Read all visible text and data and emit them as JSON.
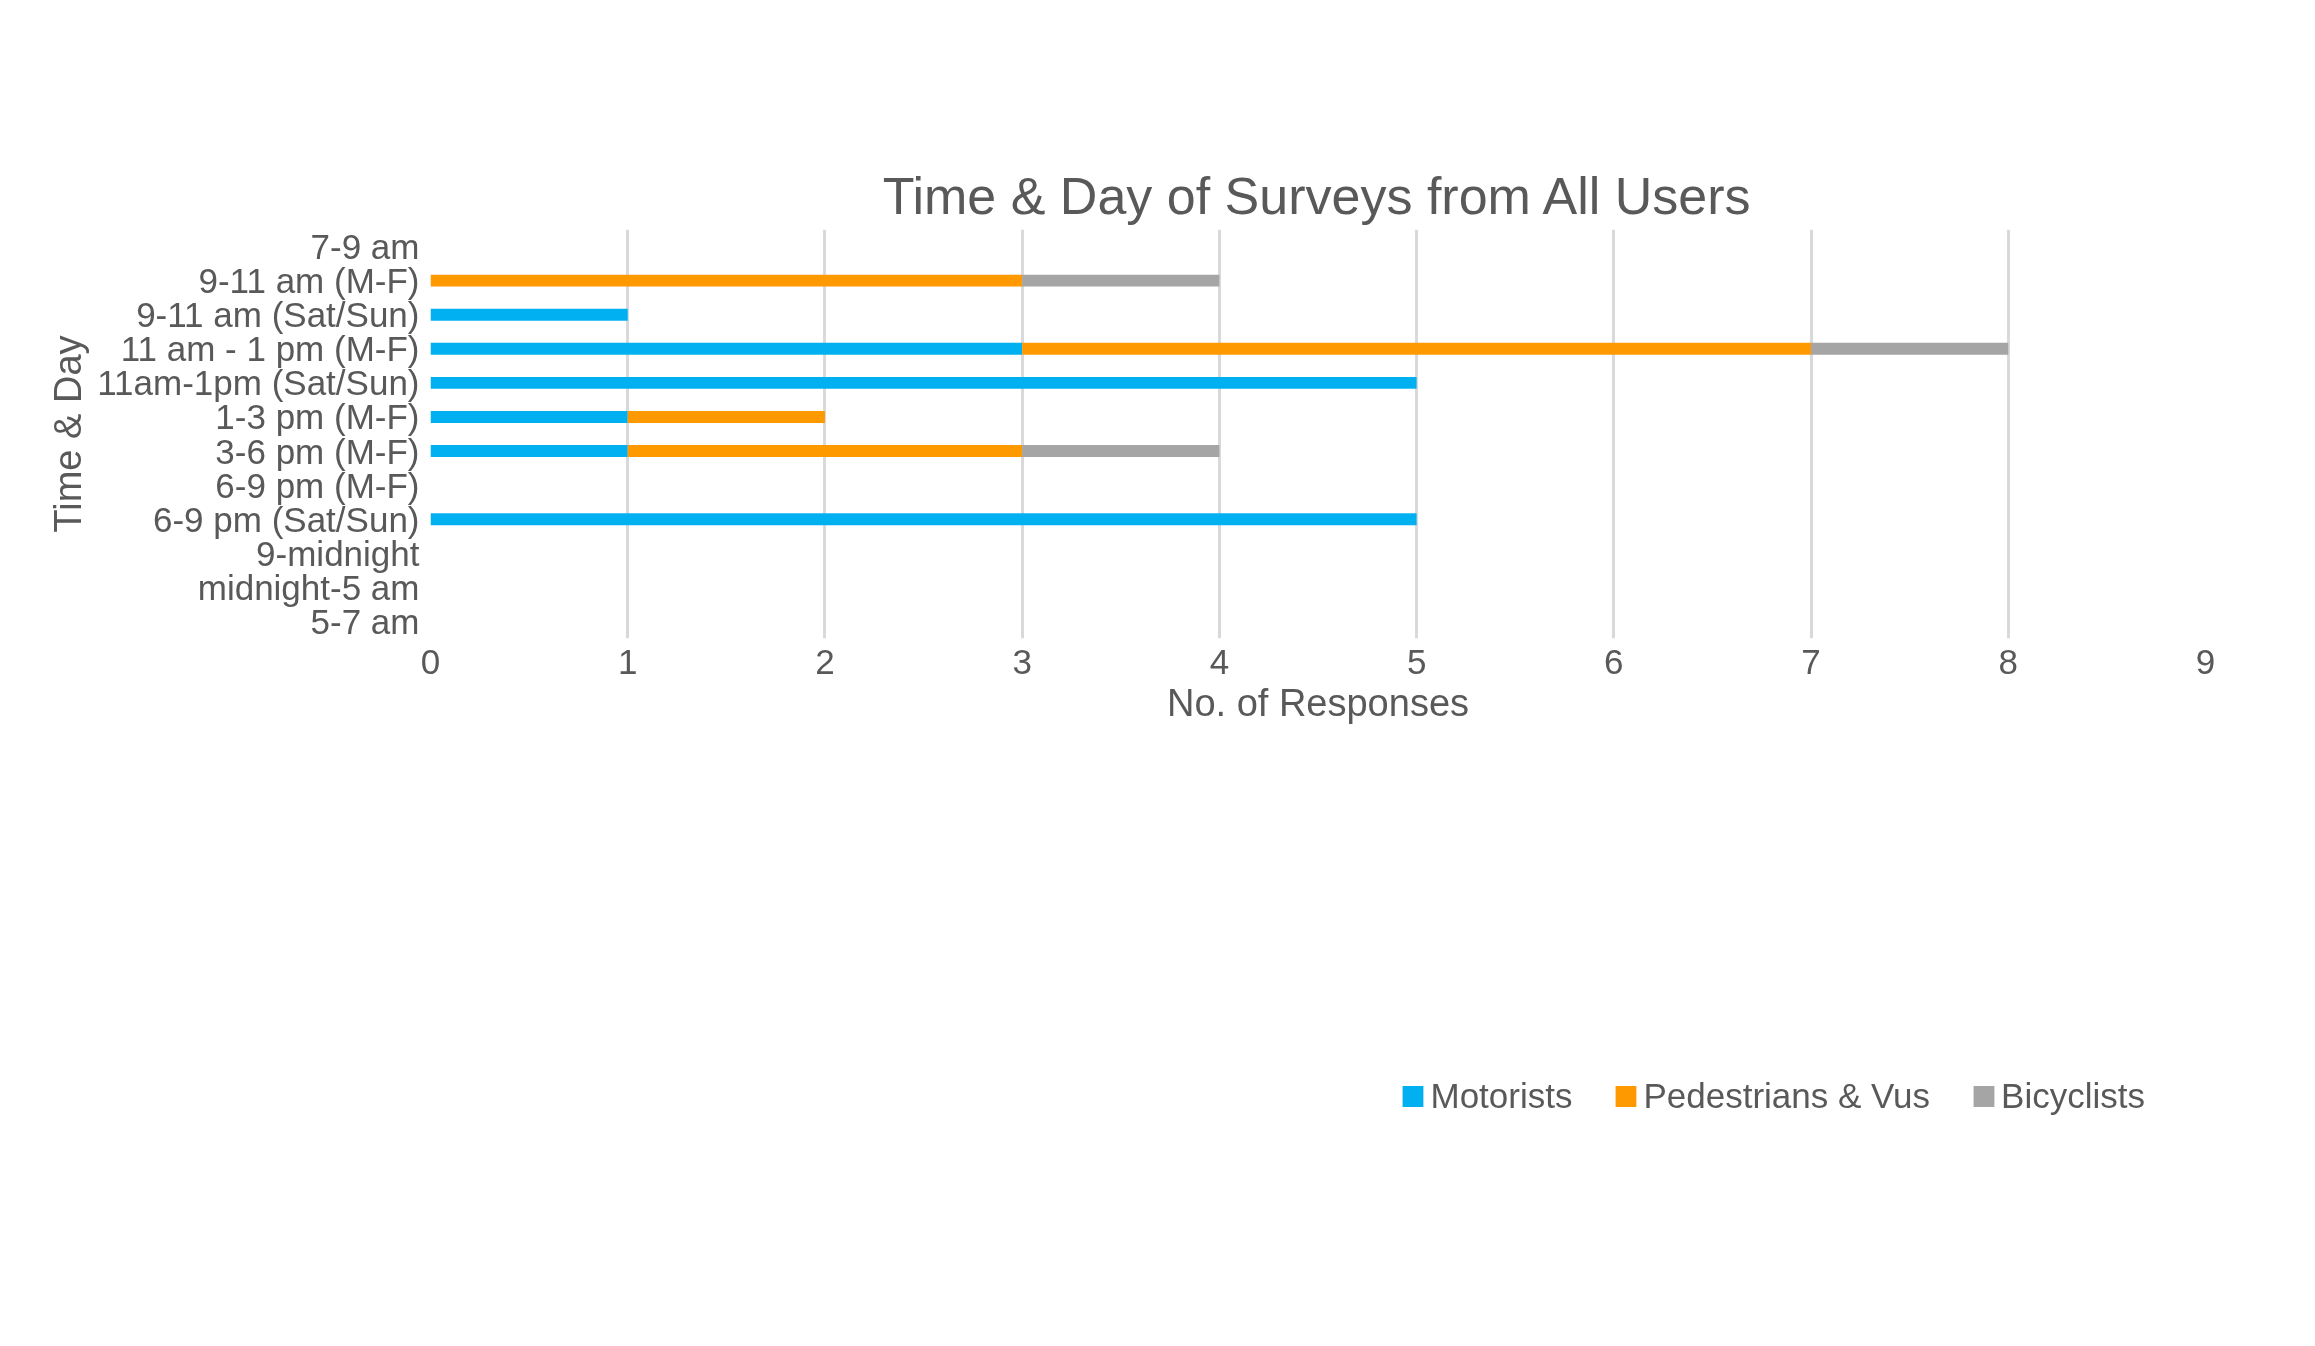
{
  "chart_data": {
    "type": "bar",
    "orientation": "horizontal",
    "stacked": true,
    "title": "Time & Day of Surveys from All Users",
    "xlabel": "No. of Responses",
    "ylabel": "Time & Day",
    "categories": [
      "7-9 am",
      "9-11 am (M-F)",
      "9-11 am (Sat/Sun)",
      "11 am - 1 pm (M-F)",
      "11am-1pm (Sat/Sun)",
      "1-3 pm (M-F)",
      "3-6 pm (M-F)",
      "6-9 pm (M-F)",
      "6-9 pm (Sat/Sun)",
      "9-midnight",
      "midnight-5 am",
      "5-7 am"
    ],
    "series": [
      {
        "name": "Motorists",
        "color": "#00b0f0",
        "values": [
          0,
          0,
          1,
          3,
          5,
          1,
          1,
          0,
          5,
          0,
          0,
          0
        ]
      },
      {
        "name": "Pedestrians & Vus",
        "color": "#ff9900",
        "values": [
          0,
          3,
          0,
          4,
          0,
          1,
          2,
          0,
          0,
          0,
          0,
          0
        ]
      },
      {
        "name": "Bicyclists",
        "color": "#a5a5a5",
        "values": [
          0,
          1,
          0,
          1,
          0,
          0,
          1,
          0,
          0,
          0,
          0,
          0
        ]
      }
    ],
    "xlim": [
      0,
      9
    ],
    "xticks": [
      0,
      1,
      2,
      3,
      4,
      5,
      6,
      7,
      8,
      9
    ],
    "grid": "x",
    "legend": "bottom"
  }
}
